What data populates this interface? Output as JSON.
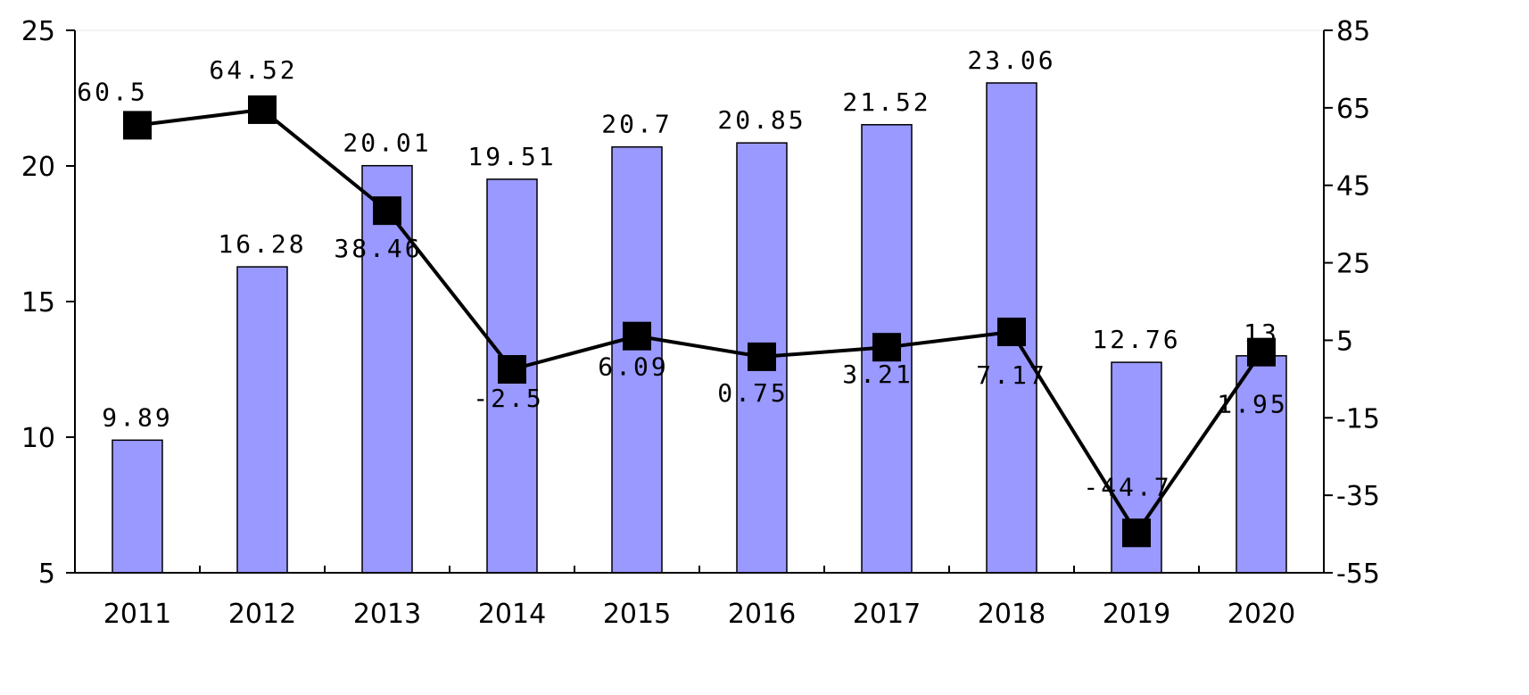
{
  "chart_data": {
    "type": "bar",
    "categories": [
      "2011",
      "2012",
      "2013",
      "2014",
      "2015",
      "2016",
      "2017",
      "2018",
      "2019",
      "2020"
    ],
    "series": [
      {
        "type": "bar",
        "axis": "left",
        "color": "#9999ff",
        "values": [
          9.89,
          16.28,
          20.01,
          19.51,
          20.7,
          20.85,
          21.52,
          23.06,
          12.76,
          13
        ],
        "labels": [
          "9.89",
          "16.28",
          "20.01",
          "19.51",
          "20.7",
          "20.85",
          "21.52",
          "23.06",
          "12.76",
          "13"
        ]
      },
      {
        "type": "line",
        "axis": "right",
        "color": "#000000",
        "marker": "square",
        "values": [
          60.5,
          64.52,
          38.46,
          -2.5,
          6.09,
          0.75,
          3.21,
          7.17,
          -44.7,
          1.95
        ],
        "labels": [
          "60.5",
          "64.52",
          "38.46",
          "-2.5",
          "6.09",
          "0.75",
          "3.21",
          "7.17",
          "-44.7",
          "1.95"
        ]
      }
    ],
    "y_left": {
      "min": 5,
      "max": 25,
      "step": 5,
      "ticks": [
        "5",
        "10",
        "15",
        "20",
        "25"
      ]
    },
    "y_right": {
      "min": -55,
      "max": 85,
      "step": 20,
      "ticks": [
        "-55",
        "-35",
        "-15",
        "5",
        "25",
        "45",
        "65",
        "85"
      ]
    },
    "title": "",
    "xlabel": "",
    "ylabel": "",
    "grid": false,
    "legend": "none"
  }
}
